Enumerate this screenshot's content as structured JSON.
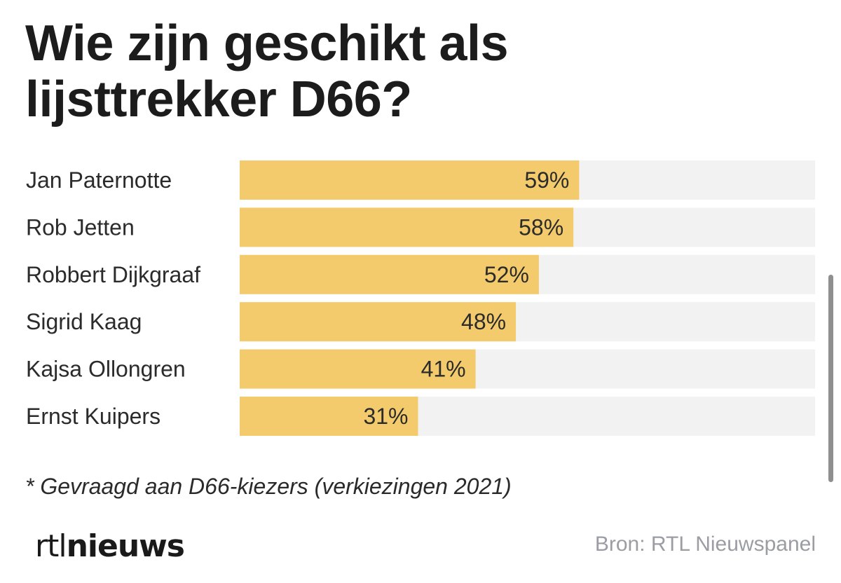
{
  "chart_data": {
    "type": "bar",
    "orientation": "horizontal",
    "title": "Wie zijn geschikt als lijsttrekker D66?",
    "title_lines": [
      "Wie zijn geschikt als",
      "lijsttrekker D66?"
    ],
    "categories": [
      "Jan Paternotte",
      "Rob Jetten",
      "Robbert Dijkgraaf",
      "Sigrid Kaag",
      "Kajsa Ollongren",
      "Ernst Kuipers"
    ],
    "values": [
      59,
      58,
      52,
      48,
      41,
      31
    ],
    "value_labels": [
      "59%",
      "58%",
      "52%",
      "48%",
      "41%",
      "31%"
    ],
    "xlim": [
      0,
      100
    ],
    "unit": "%",
    "grid": false,
    "colors": {
      "bar": "#f3cb6c",
      "track": "#f2f2f2",
      "text": "#2b2b2b"
    }
  },
  "footnote": "* Gevraagd aan D66-kiezers (verkiezingen 2021)",
  "logo": {
    "light": "rtl",
    "bold": "nieuws"
  },
  "source": "Bron: RTL Nieuwspanel"
}
